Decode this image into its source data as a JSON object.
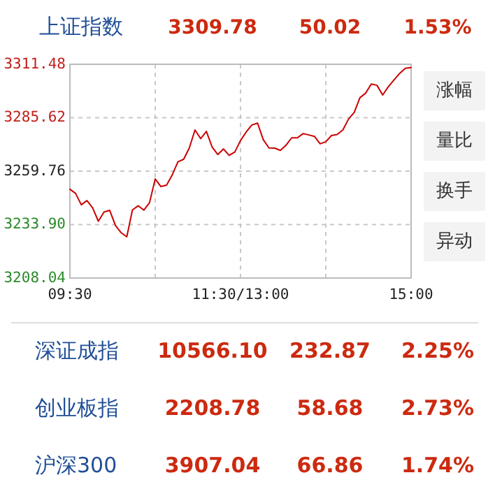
{
  "chart_data": {
    "type": "line",
    "title": "上证指数",
    "annotations": [
      "3309.78",
      "50.02",
      "1.53%",
      "涨幅",
      "量比",
      "换手",
      "异动",
      "深证成指",
      "10566.10",
      "232.87",
      "2.25%",
      "创业板指",
      "2208.78",
      "58.68",
      "2.73%",
      "沪深300",
      "3907.04",
      "66.86",
      "1.74%"
    ],
    "categories": [
      "09:30",
      null,
      null,
      null,
      null,
      null,
      null,
      null,
      null,
      null,
      null,
      null,
      null,
      null,
      null,
      null,
      null,
      null,
      null,
      null,
      null,
      null,
      null,
      null,
      null,
      null,
      null,
      null,
      null,
      null,
      "11:30/13:00",
      null,
      null,
      null,
      null,
      null,
      null,
      null,
      null,
      null,
      null,
      null,
      null,
      null,
      null,
      null,
      null,
      null,
      null,
      null,
      null,
      null,
      null,
      null,
      null,
      null,
      null,
      null,
      null,
      null,
      "15:00"
    ],
    "series": [
      {
        "color": "#cc0000",
        "values": [
          3251.0,
          3249.0,
          3243.5,
          3245.5,
          3242.0,
          3235.5,
          3240.0,
          3240.8,
          3233.5,
          3230.0,
          3228.0,
          3241.0,
          3243.0,
          3240.9,
          3244.5,
          3256.0,
          3252.3,
          3253.0,
          3258.0,
          3264.3,
          3265.5,
          3271.0,
          3279.7,
          3275.5,
          3279.0,
          3271.5,
          3267.8,
          3270.5,
          3267.4,
          3269.0,
          3274.6,
          3278.7,
          3282.1,
          3283.0,
          3275.0,
          3271.0,
          3270.9,
          3269.8,
          3272.3,
          3275.9,
          3275.9,
          3277.9,
          3277.3,
          3276.6,
          3273.0,
          3274.0,
          3277.0,
          3277.5,
          3279.7,
          3285.0,
          3288.2,
          3295.3,
          3297.5,
          3301.9,
          3301.3,
          3296.6,
          3300.6,
          3303.9,
          3307.1,
          3309.5,
          3309.9
        ]
      }
    ],
    "ylim": [
      3208.04,
      3311.48
    ],
    "yticks": [
      3208.04,
      {
        "value": 3233.9,
        "label": "3233.90"
      },
      3259.76,
      3285.62,
      3311.48
    ],
    "grid": true,
    "line_style": "solid",
    "marker": "none"
  }
}
